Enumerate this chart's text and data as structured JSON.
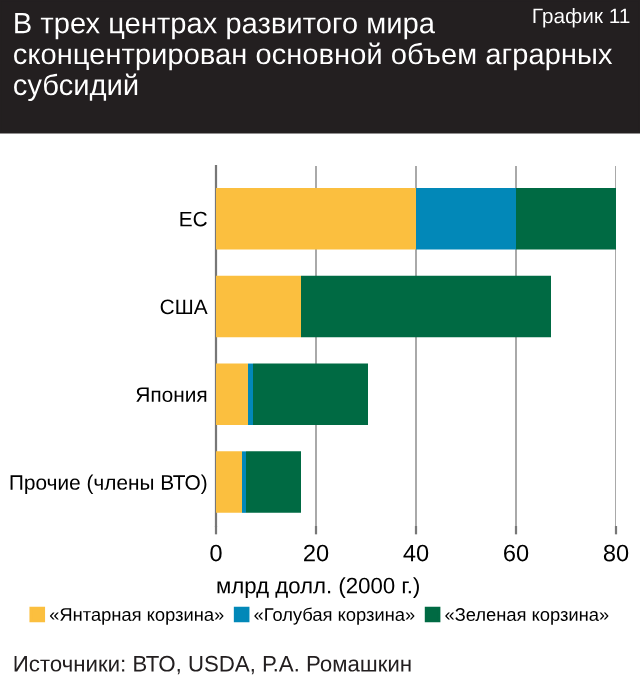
{
  "chart_data": {
    "type": "bar",
    "orientation": "horizontal",
    "stacked": true,
    "title": "В трех центрах развитого мира сконцентрирован основной объем аграрных субсидий",
    "xlabel": "млрд долл. (2000 г.)",
    "annotations": [
      "График 11",
      "Источники: ВТО, USDA, Р.А. Ромашкин"
    ],
    "categories": [
      "ЕС",
      "США",
      "Япония",
      "Прочие (члены ВТО)"
    ],
    "series": [
      {
        "name": "«Янтарная корзина»",
        "color": "#fbbf3f",
        "values": [
          40,
          17,
          6.4,
          5.2
        ]
      },
      {
        "name": "«Голубая корзина»",
        "color": "#0288b8",
        "values": [
          20,
          0,
          1,
          0.8
        ]
      },
      {
        "name": "«Зеленая корзина»",
        "color": "#006a43",
        "values": [
          20,
          50,
          23,
          11
        ]
      }
    ],
    "xlim": [
      0,
      80
    ],
    "xticks": [
      0,
      20,
      40,
      60,
      80
    ],
    "grid": "x",
    "legend": "bottom"
  }
}
